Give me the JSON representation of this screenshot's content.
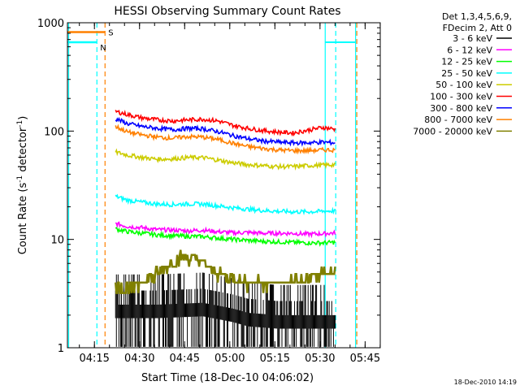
{
  "chart_data": {
    "type": "line",
    "title": "HESSI Observing Summary Count Rates",
    "xlabel": "Start Time (18-Dec-10 04:06:02)",
    "ylabel_main": "Count Rate (s",
    "ylabel_sup1": "-1",
    "ylabel_mid": " detector",
    "ylabel_sup2": "-1",
    "ylabel_end": ")",
    "y_scale": "log",
    "ylim": [
      1,
      1000
    ],
    "x_range_minutes": [
      0,
      104
    ],
    "y_ticks": [
      {
        "v": 1,
        "label": "1"
      },
      {
        "v": 10,
        "label": "10"
      },
      {
        "v": 100,
        "label": "100"
      },
      {
        "v": 1000,
        "label": "1000"
      }
    ],
    "x_ticks": [
      {
        "t": 8.97,
        "label": "04:15"
      },
      {
        "t": 23.97,
        "label": "04:30"
      },
      {
        "t": 38.97,
        "label": "04:45"
      },
      {
        "t": 53.97,
        "label": "05:00"
      },
      {
        "t": 68.97,
        "label": "05:15"
      },
      {
        "t": 83.97,
        "label": "05:30"
      },
      {
        "t": 98.97,
        "label": "05:45"
      }
    ],
    "legend": {
      "header": [
        "Det 1,3,4,5,6,9,",
        "FDecim 2, Att 0"
      ],
      "placement": "right"
    },
    "series": [
      {
        "name": "3 - 6 keV",
        "color": "#000000",
        "style": "sparse-counts",
        "x": [
          16,
          30,
          45,
          55,
          60,
          70,
          80,
          89
        ],
        "y": [
          2.5,
          2.5,
          2.6,
          2.3,
          2.1,
          2.0,
          2.0,
          2.0
        ]
      },
      {
        "name": "6 - 12 keV",
        "color": "#ff00ff",
        "x": [
          16,
          20,
          25,
          30,
          35,
          40,
          45,
          50,
          55,
          60,
          65,
          70,
          75,
          80,
          85,
          89
        ],
        "y": [
          14,
          13.2,
          12.8,
          12.3,
          12.2,
          12.0,
          12.2,
          11.8,
          11.5,
          11.6,
          11.4,
          11.4,
          11.4,
          11.2,
          11.3,
          11.5
        ]
      },
      {
        "name": "12 - 25 keV",
        "color": "#00ff00",
        "x": [
          16,
          20,
          25,
          30,
          35,
          40,
          45,
          50,
          55,
          60,
          65,
          70,
          75,
          80,
          85,
          89
        ],
        "y": [
          12.5,
          11.8,
          11.4,
          11.0,
          10.8,
          10.7,
          10.6,
          10.3,
          10.0,
          9.8,
          9.6,
          9.5,
          9.4,
          9.3,
          9.3,
          9.4
        ]
      },
      {
        "name": "25 - 50 keV",
        "color": "#00ffff",
        "x": [
          16,
          20,
          25,
          30,
          35,
          40,
          45,
          50,
          55,
          60,
          65,
          70,
          75,
          80,
          85,
          89
        ],
        "y": [
          25,
          23,
          22,
          21.2,
          21,
          21.3,
          21.2,
          20.4,
          19.6,
          19.0,
          18.5,
          18.2,
          18.0,
          18.0,
          18.2,
          18.4
        ]
      },
      {
        "name": "50 - 100 keV",
        "color": "#cccc00",
        "x": [
          16,
          20,
          25,
          30,
          35,
          40,
          45,
          50,
          55,
          60,
          65,
          70,
          75,
          80,
          85,
          89
        ],
        "y": [
          64,
          60,
          57,
          55,
          55.5,
          57,
          57,
          54,
          51,
          49,
          48,
          47,
          47,
          48,
          48.5,
          49
        ]
      },
      {
        "name": "100 - 300 keV",
        "color": "#ff0000",
        "x": [
          16,
          20,
          25,
          30,
          35,
          40,
          45,
          50,
          55,
          60,
          65,
          70,
          75,
          80,
          85,
          89
        ],
        "y": [
          152,
          142,
          132,
          127,
          124,
          127,
          129,
          124,
          113,
          106,
          101,
          98,
          96,
          102,
          108,
          104
        ]
      },
      {
        "name": "300 - 800 keV",
        "color": "#0000ff",
        "x": [
          16,
          20,
          25,
          30,
          35,
          40,
          45,
          50,
          55,
          60,
          65,
          70,
          75,
          80,
          85,
          89
        ],
        "y": [
          130,
          117,
          110,
          106,
          103,
          106,
          105,
          99,
          91,
          85,
          81,
          79,
          78,
          78,
          79,
          78
        ]
      },
      {
        "name": "800 - 7000 keV",
        "color": "#ff8000",
        "x": [
          16,
          20,
          25,
          30,
          35,
          40,
          45,
          50,
          55,
          60,
          65,
          70,
          75,
          80,
          85,
          89
        ],
        "y": [
          110,
          98,
          92,
          88,
          86,
          89,
          88,
          84,
          77,
          72,
          69,
          67,
          66,
          66,
          67,
          67
        ]
      },
      {
        "name": "7000 - 20000 keV",
        "color": "#808000",
        "style": "stepped",
        "x": [
          16,
          22,
          30,
          38,
          44,
          50,
          55,
          60,
          70,
          80,
          85,
          89
        ],
        "y": [
          3.6,
          3.6,
          4.8,
          7.0,
          6.3,
          4.8,
          4.4,
          4.0,
          4.0,
          4.2,
          4.8,
          5.0
        ]
      }
    ],
    "markers": [
      {
        "label": "S",
        "x": 12.5,
        "color": "#ff8000",
        "value_line": 820,
        "from": 0
      },
      {
        "label": "N",
        "x": 9.8,
        "color": "#00ffff",
        "value_line": 660,
        "from": 0
      }
    ],
    "boundaries": [
      {
        "x": 0.4,
        "color": "#00ffff",
        "dash": false
      },
      {
        "x": 9.8,
        "color": "#00ffff",
        "dash": true
      },
      {
        "x": 12.5,
        "color": "#ff8000",
        "dash": true
      },
      {
        "x": 85.7,
        "color": "#00ffff",
        "dash": false
      },
      {
        "x": 89.2,
        "color": "#00ffff",
        "dash": true
      },
      {
        "x": 95.8,
        "color": "#00ffff",
        "dash": false
      },
      {
        "x": 96.2,
        "color": "#ff8000",
        "dash": true
      }
    ],
    "stamp": "18-Dec-2010 14:19"
  }
}
